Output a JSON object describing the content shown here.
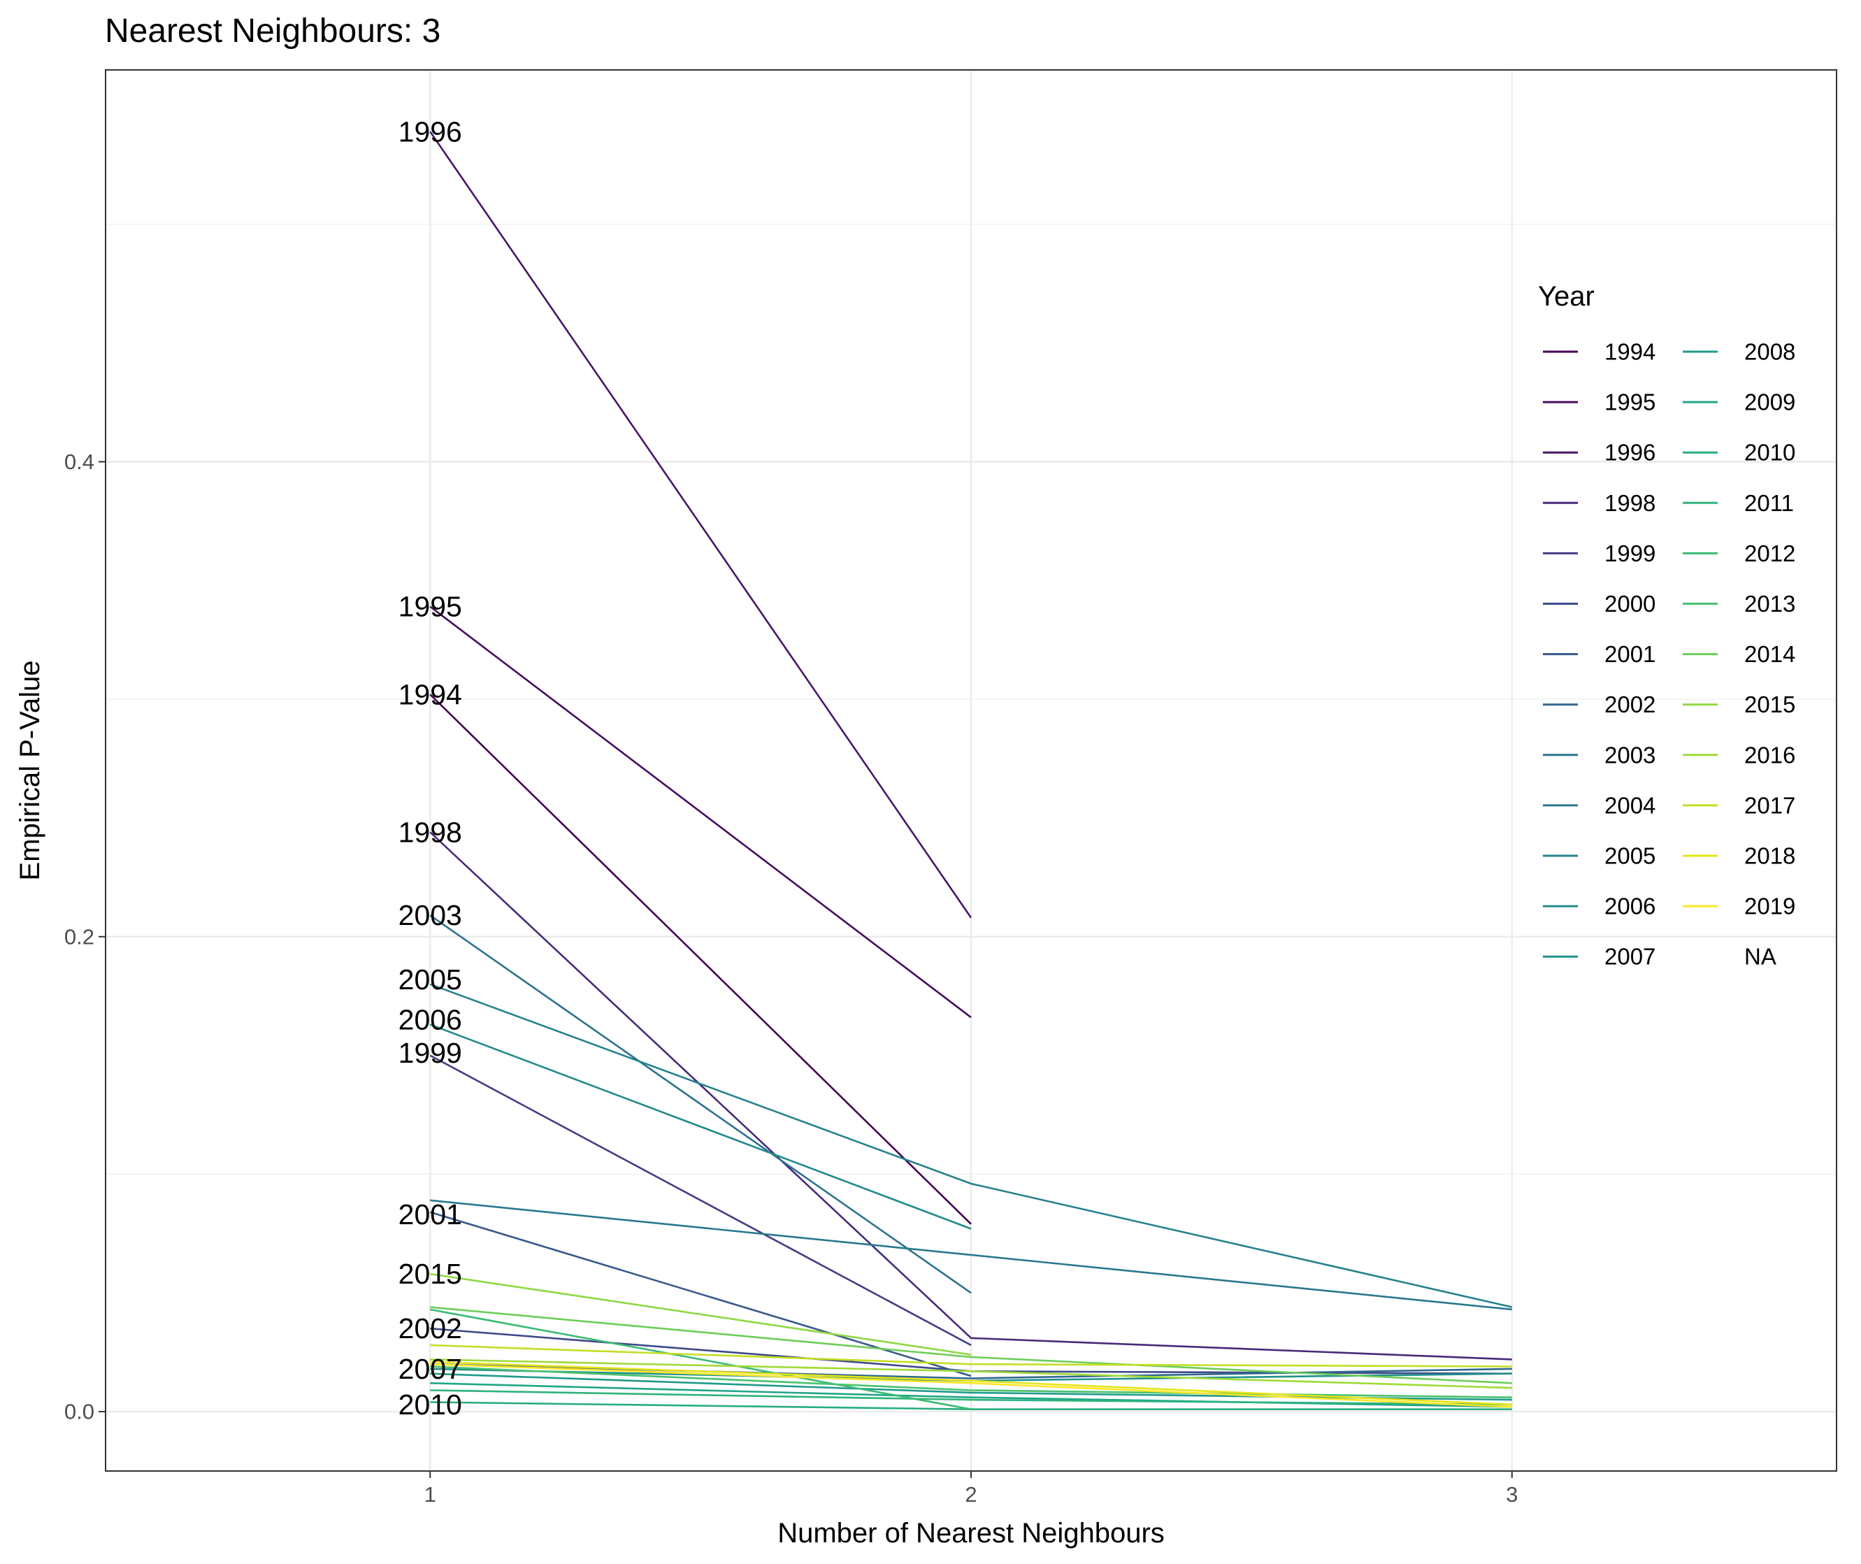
{
  "chart_data": {
    "type": "line",
    "title": "Nearest Neighbours: 3",
    "xlabel": "Number of Nearest Neighbours",
    "ylabel": "Empirical P-Value",
    "x": [
      1,
      2,
      3
    ],
    "x_ticks": [
      "1",
      "2",
      "3"
    ],
    "y_ticks": [
      "0.0",
      "0.2",
      "0.4"
    ],
    "xlim": [
      0.4,
      3.6
    ],
    "ylim": [
      -0.025,
      0.565
    ],
    "grid": true,
    "legend": {
      "title": "Year",
      "placement": "right",
      "columns": 2,
      "entries": [
        "1994",
        "1995",
        "1996",
        "1998",
        "1999",
        "2000",
        "2001",
        "2002",
        "2003",
        "2004",
        "2005",
        "2006",
        "2007",
        "2008",
        "2009",
        "2010",
        "2011",
        "2012",
        "2013",
        "2014",
        "2015",
        "2016",
        "2017",
        "2018",
        "2019",
        "NA"
      ]
    },
    "series": [
      {
        "name": "1994",
        "color": "#440154",
        "values": [
          0.302,
          0.079,
          null
        ]
      },
      {
        "name": "1995",
        "color": "#460B5E",
        "values": [
          0.339,
          0.166,
          null
        ]
      },
      {
        "name": "1996",
        "color": "#481769",
        "values": [
          0.539,
          0.208,
          null
        ]
      },
      {
        "name": "1998",
        "color": "#472A7A",
        "values": [
          0.244,
          0.031,
          0.022
        ]
      },
      {
        "name": "1999",
        "color": "#433D84",
        "values": [
          0.15,
          0.028,
          null
        ]
      },
      {
        "name": "2000",
        "color": "#3E4A89",
        "values": [
          0.035,
          0.017,
          0.016
        ]
      },
      {
        "name": "2001",
        "color": "#38598C",
        "values": [
          0.084,
          0.015,
          null
        ]
      },
      {
        "name": "2002",
        "color": "#31688E",
        "values": [
          0.02,
          0.014,
          0.018
        ]
      },
      {
        "name": "2003",
        "color": "#2C728E",
        "values": [
          0.209,
          0.05,
          null
        ]
      },
      {
        "name": "2004",
        "color": "#2A788E",
        "values": [
          0.089,
          0.066,
          0.043
        ]
      },
      {
        "name": "2005",
        "color": "#26828E",
        "values": [
          0.18,
          0.096,
          0.044
        ]
      },
      {
        "name": "2006",
        "color": "#238A8D",
        "values": [
          0.163,
          0.077,
          null
        ]
      },
      {
        "name": "2007",
        "color": "#20928C",
        "values": [
          0.018,
          0.013,
          0.016
        ]
      },
      {
        "name": "2008",
        "color": "#1F9A8A",
        "values": [
          0.016,
          0.008,
          0.005
        ]
      },
      {
        "name": "2009",
        "color": "#21A685",
        "values": [
          0.012,
          0.006,
          0.002
        ]
      },
      {
        "name": "2010",
        "color": "#27AD81",
        "values": [
          0.004,
          0.001,
          0.001
        ]
      },
      {
        "name": "2011",
        "color": "#2EB37C",
        "values": [
          0.009,
          0.005,
          0.003
        ]
      },
      {
        "name": "2012",
        "color": "#3BBB75",
        "values": [
          0.043,
          0.001,
          null
        ]
      },
      {
        "name": "2013",
        "color": "#4AC16D",
        "values": [
          0.019,
          0.009,
          0.006
        ]
      },
      {
        "name": "2014",
        "color": "#6DCD59",
        "values": [
          0.044,
          0.023,
          0.012
        ]
      },
      {
        "name": "2015",
        "color": "#8FD744",
        "values": [
          0.058,
          0.024,
          null
        ]
      },
      {
        "name": "2016",
        "color": "#A0DA39",
        "values": [
          0.022,
          0.017,
          0.01
        ]
      },
      {
        "name": "2017",
        "color": "#C2DF23",
        "values": [
          0.028,
          0.02,
          0.019
        ]
      },
      {
        "name": "2018",
        "color": "#E5E419",
        "values": [
          0.021,
          0.013,
          0.003
        ]
      },
      {
        "name": "2019",
        "color": "#FDE725",
        "values": [
          0.02,
          0.012,
          0.002
        ]
      }
    ],
    "series_labels": [
      {
        "text": "1996",
        "y": 0.539
      },
      {
        "text": "1995",
        "y": 0.339
      },
      {
        "text": "1994",
        "y": 0.302
      },
      {
        "text": "1998",
        "y": 0.244
      },
      {
        "text": "2003",
        "y": 0.209
      },
      {
        "text": "2005",
        "y": 0.182
      },
      {
        "text": "2006",
        "y": 0.165
      },
      {
        "text": "1999",
        "y": 0.151
      },
      {
        "text": "2001",
        "y": 0.083
      },
      {
        "text": "2015",
        "y": 0.058
      },
      {
        "text": "2002",
        "y": 0.035
      },
      {
        "text": "2007",
        "y": 0.018
      },
      {
        "text": "2010",
        "y": 0.003
      }
    ]
  }
}
